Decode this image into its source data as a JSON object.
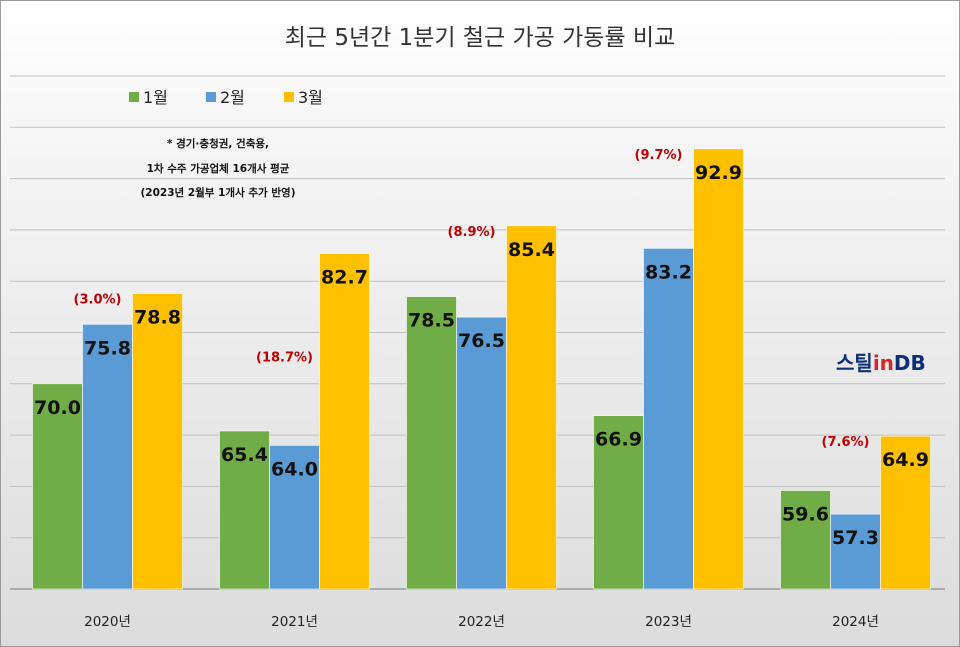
{
  "chart_data": {
    "type": "bar",
    "title": "최근 5년간 1분기 철근 가공 가동률 비교",
    "categories": [
      "2020년",
      "2021년",
      "2022년",
      "2023년",
      "2024년"
    ],
    "series": [
      {
        "name": "1월",
        "values": [
          70.0,
          65.4,
          78.5,
          66.9,
          59.6
        ],
        "labels": [
          "70.0",
          "65.4",
          "78.5",
          "66.9",
          "59.6"
        ]
      },
      {
        "name": "2월",
        "values": [
          75.8,
          64.0,
          76.5,
          83.2,
          57.3
        ],
        "labels": [
          "75.8",
          "64.0",
          "76.5",
          "83.2",
          "57.3"
        ]
      },
      {
        "name": "3월",
        "values": [
          78.8,
          82.7,
          85.4,
          92.9,
          64.9
        ],
        "labels": [
          "78.8",
          "82.7",
          "85.4",
          "92.9",
          "64.9"
        ]
      }
    ],
    "annotations": [
      "(3.0%)",
      "(18.7%)",
      "(8.9%)",
      "(9.7%)",
      "(7.6%)"
    ],
    "note": [
      "* 경기·충청권, 건축용,",
      "1차 수주 가공업체 16개사 평균",
      "(2023년 2월부 1개사 추가 반영)"
    ],
    "ylim": [
      50,
      100
    ],
    "y_axis_labels_shown": false,
    "grid": true,
    "legend_position": "top-left",
    "colors": {
      "1월": "#70ad47",
      "2월": "#5b9bd5",
      "3월": "#ffc000",
      "annotation": "#c00000"
    }
  },
  "logo": {
    "text_main": "스틸",
    "text_in": "in",
    "text_db": "DB"
  }
}
